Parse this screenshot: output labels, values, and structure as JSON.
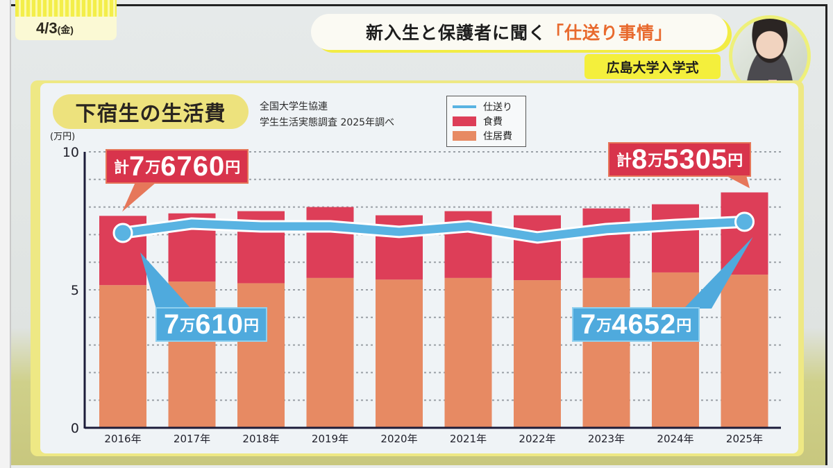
{
  "broadcast": {
    "date": "4/3",
    "day_of_week": "(金)",
    "headline_prefix": "新入生と保護者に聞く",
    "headline_accent": "「仕送り事情」",
    "subhead": "広島大学入学式"
  },
  "colors": {
    "food": "#dd3e58",
    "housing": "#e78a63",
    "allowance_line": "#59b3e2",
    "total_callout": "#d8344c",
    "allowance_callout": "#4faadd"
  },
  "chart_data": {
    "type": "bar",
    "stacked": true,
    "title": "下宿生の生活費",
    "source_line1": "全国大学生協連",
    "source_line2": "学生生活実態調査 2025年調べ",
    "ylabel": "(万円)",
    "xlabel": "",
    "ylim": [
      0,
      10
    ],
    "yticks": [
      0,
      5,
      10
    ],
    "grid": true,
    "legend_position": "top-center",
    "categories": [
      "2016年",
      "2017年",
      "2018年",
      "2019年",
      "2020年",
      "2021年",
      "2022年",
      "2023年",
      "2024年",
      "2025年"
    ],
    "series": [
      {
        "name": "住居費",
        "kind": "bar",
        "values": [
          5.17,
          5.3,
          5.24,
          5.43,
          5.37,
          5.43,
          5.35,
          5.43,
          5.63,
          5.55
        ]
      },
      {
        "name": "食費",
        "kind": "bar",
        "values": [
          2.51,
          2.47,
          2.61,
          2.57,
          2.33,
          2.42,
          2.35,
          2.52,
          2.47,
          2.98
        ]
      },
      {
        "name": "仕送り",
        "kind": "line",
        "values": [
          7.061,
          7.4,
          7.3,
          7.3,
          7.1,
          7.3,
          6.9,
          7.2,
          7.35,
          7.4652
        ]
      }
    ],
    "legend": [
      "仕送り",
      "食費",
      "住居費"
    ],
    "annotations": [
      {
        "target": "2016年 total",
        "prefix": "計",
        "man": "7",
        "man_unit": "万",
        "rest": "6760",
        "yen": "円"
      },
      {
        "target": "2025年 total",
        "prefix": "計",
        "man": "8",
        "man_unit": "万",
        "rest": "5305",
        "yen": "円"
      },
      {
        "target": "2016年 仕送り",
        "prefix": "",
        "man": "7",
        "man_unit": "万",
        "rest": "610",
        "yen": "円"
      },
      {
        "target": "2025年 仕送り",
        "prefix": "",
        "man": "7",
        "man_unit": "万",
        "rest": "4652",
        "yen": "円"
      }
    ]
  }
}
